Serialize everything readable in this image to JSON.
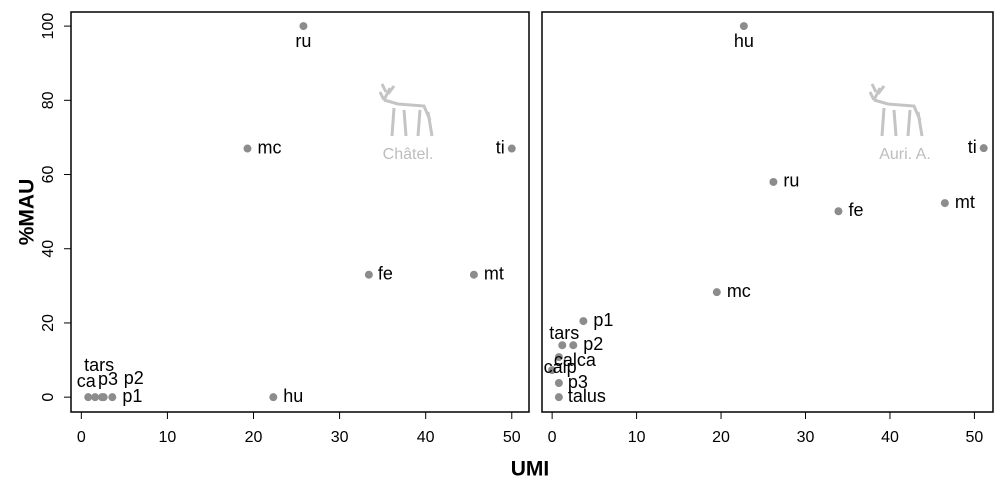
{
  "chart_data": [
    {
      "type": "scatter",
      "ylabel": "%MAU",
      "xlabel": "UMI",
      "annotation": "Châtel.",
      "color": "#8c8c8c",
      "point_labels": [
        "ru",
        "mc",
        "ti",
        "fe",
        "mt",
        "hu",
        "ca",
        "tars",
        "p3",
        "p2",
        "p1"
      ],
      "x": [
        25.8,
        19.3,
        50,
        33.4,
        45.6,
        22.3,
        0.8,
        1.6,
        2.4,
        2.6,
        3.6
      ],
      "values": [
        100,
        67,
        67,
        33,
        33,
        0,
        0,
        0,
        0,
        0,
        0
      ],
      "xlim": [
        -1.2,
        52
      ],
      "ylim": [
        -4,
        103.8
      ],
      "xticks": [
        0,
        10,
        20,
        30,
        40,
        50
      ],
      "yticks": [
        0,
        20,
        40,
        60,
        80,
        100
      ]
    },
    {
      "type": "scatter",
      "annotation": "Auri. A.",
      "color": "#8c8c8c",
      "point_labels": [
        "hu",
        "ti",
        "ru",
        "fe",
        "mt",
        "mc",
        "p1",
        "tars",
        "p2",
        "calca",
        "calp",
        "p3",
        "talus"
      ],
      "x": [
        22.7,
        51.1,
        26.2,
        33.9,
        46.5,
        19.5,
        3.7,
        1.2,
        2.5,
        0.8,
        0,
        0.8,
        0.8
      ],
      "values": [
        100,
        67.1,
        58,
        50.1,
        52.3,
        28.3,
        20.5,
        14,
        14,
        10.8,
        7.3,
        3.8,
        0
      ],
      "xlim": [
        -1.2,
        52.2
      ],
      "ylim": [
        -4,
        103.8
      ],
      "xticks": [
        0,
        10,
        20,
        30,
        40,
        50
      ]
    }
  ]
}
